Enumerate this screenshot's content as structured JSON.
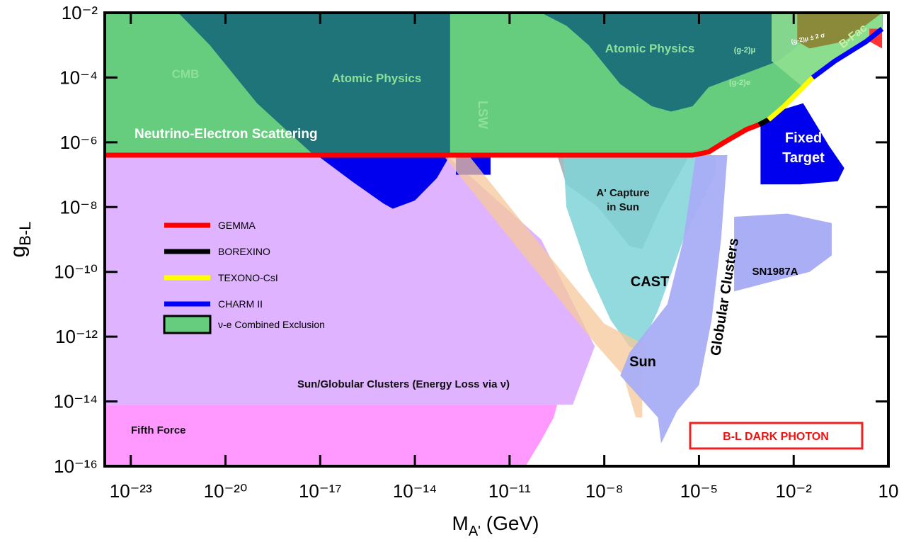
{
  "chart_data": {
    "type": "area",
    "xlabel": {
      "main": "M",
      "sub": "A'",
      "unit": " (GeV)"
    },
    "ylabel": {
      "main": "g",
      "sub": "B-L"
    },
    "log_x": true,
    "log_y": true,
    "xlim": [
      1.5e-24,
      10
    ],
    "ylim": [
      1e-16,
      0.01
    ],
    "xticks": [
      {
        "value": 1e-23,
        "label": "10⁻²³"
      },
      {
        "value": 1e-20,
        "label": "10⁻²⁰"
      },
      {
        "value": 1e-17,
        "label": "10⁻¹⁷"
      },
      {
        "value": 1e-14,
        "label": "10⁻¹⁴"
      },
      {
        "value": 1e-11,
        "label": "10⁻¹¹"
      },
      {
        "value": 1e-08,
        "label": "10⁻⁸"
      },
      {
        "value": 1e-05,
        "label": "10⁻⁵"
      },
      {
        "value": 0.01,
        "label": "10⁻²"
      },
      10
    ],
    "yticks": [
      {
        "value": 1e-16,
        "label": "10⁻¹⁶"
      },
      {
        "value": 1e-14,
        "label": "10⁻¹⁴"
      },
      {
        "value": 1e-12,
        "label": "10⁻¹²"
      },
      {
        "value": 1e-10,
        "label": "10⁻¹⁰"
      },
      {
        "value": 1e-08,
        "label": "10⁻⁸"
      },
      {
        "value": 1e-06,
        "label": "10⁻⁶"
      },
      {
        "value": 0.0001,
        "label": "10⁻⁴"
      },
      {
        "value": 0.01,
        "label": "10⁻²"
      }
    ],
    "regions": [
      {
        "name": "ν-e Combined Exclusion",
        "color": "#66cc7e",
        "opacity": 1,
        "x": [
          1.5e-24,
          6.3e-06,
          2e-05,
          6.3e-05,
          0.00032,
          0.00079,
          0.0016,
          0.005,
          0.02,
          0.04,
          0.2,
          2,
          6.3,
          6.3,
          1.5e-24
        ],
        "values": [
          4e-07,
          4e-07,
          5e-07,
          1e-06,
          2.5e-06,
          3.5e-06,
          5e-06,
          1.3e-05,
          5e-05,
          0.0001,
          0.00032,
          0.0013,
          0.0032,
          0.01,
          0.01
        ]
      },
      {
        "color": "#dfb3ff",
        "opacity": 1,
        "x": [
          1.5e-24,
          1e-13,
          1e-10,
          5e-09,
          1e-09,
          1.5e-24
        ],
        "values": [
          4e-07,
          4e-07,
          1e-09,
          5e-13,
          7.9e-15,
          7.9e-15
        ]
      },
      {
        "color": "#ff99ff",
        "opacity": 1,
        "x": [
          1.5e-24,
          1.5e-24,
          3.2e-10,
          2.5e-10,
          1e-10,
          3.2e-11
        ],
        "values": [
          1e-16,
          7.9e-15,
          7.9e-15,
          3.2e-15,
          6.3e-16,
          1e-16
        ]
      },
      {
        "color": "#1e7479",
        "opacity": 1,
        "x": [
          3.2e-22,
          1.3e-13,
          1.3e-13,
          6.3e-18,
          1e-19,
          3.2e-21
        ],
        "values": [
          0.01,
          0.01,
          4e-07,
          4e-07,
          1.6e-05,
          0.001
        ]
      },
      {
        "color": "#1e7479",
        "opacity": 1,
        "x": [
          1e-10,
          0.05,
          0.05,
          0.0032,
          2e-05,
          6.3e-06,
          1.3e-06,
          3.2e-07,
          3.2e-08,
          3.2e-09,
          6.3e-10
        ],
        "values": [
          0.01,
          0.01,
          0.0025,
          0.00032,
          5e-05,
          1.3e-05,
          8.9e-06,
          1.3e-05,
          6.3e-05,
          0.001,
          0.004
        ]
      },
      {
        "color": "#8fe08f",
        "opacity": 0.9,
        "x": [
          0.002,
          6.3,
          6.3,
          0.2,
          0.02,
          0.002
        ],
        "values": [
          0.01,
          0.01,
          0.0032,
          0.00032,
          5e-05,
          0.00032
        ]
      },
      {
        "color": "#8a8a3a",
        "opacity": 1,
        "x": [
          0.013,
          6.3,
          0.4,
          0.032,
          0.013
        ],
        "values": [
          0.01,
          0.01,
          0.0013,
          0.00079,
          0.0013
        ]
      },
      {
        "color": "#ff3333",
        "opacity": 1,
        "x": [
          2.5,
          6.3,
          6.3,
          2.5
        ],
        "values": [
          0.0032,
          0.0032,
          0.00079,
          0.0013
        ]
      },
      {
        "color": "#0000ee",
        "opacity": 1,
        "x": [
          7.9e-18,
          1e-16,
          1e-15,
          2e-15,
          1e-14,
          5e-14,
          1.3e-13
        ],
        "values": [
          4e-07,
          6.3e-08,
          1.3e-08,
          8.9e-09,
          1.6e-08,
          7.9e-08,
          4e-07
        ]
      },
      {
        "color": "#0000ee",
        "opacity": 1,
        "x": [
          2e-13,
          2.5e-12,
          2.5e-12,
          2e-13
        ],
        "values": [
          4e-07,
          4e-07,
          1e-07,
          1e-07
        ]
      },
      {
        "color": "#0000ee",
        "opacity": 1,
        "x": [
          0.00089,
          0.004,
          0.02,
          0.13,
          0.4,
          0.25,
          0.016,
          0.00089
        ],
        "values": [
          3.5e-06,
          1e-05,
          1.6e-05,
          7.9e-07,
          1.6e-07,
          6.3e-08,
          5e-08,
          5e-08
        ]
      },
      {
        "color": "#8fa0a8",
        "opacity": 0.75,
        "x": [
          3.2e-10,
          5e-06,
          6.3e-07,
          1.6e-07,
          6.3e-08,
          6.3e-09,
          6.3e-10
        ],
        "values": [
          4e-07,
          4e-07,
          1e-08,
          5e-10,
          6.3e-10,
          1e-08,
          5e-08
        ]
      },
      {
        "color": "#7fd3d8",
        "opacity": 0.85,
        "x": [
          5e-10,
          3.2e-05,
          3.2e-05,
          3.2e-06,
          5e-07,
          2e-07,
          1e-07,
          6.3e-08,
          1.6e-08,
          3.2e-09,
          6.3e-10
        ],
        "values": [
          4e-07,
          4e-07,
          1e-07,
          1e-09,
          6.3e-12,
          1e-12,
          4e-13,
          5e-13,
          3.2e-12,
          1e-10,
          1e-08
        ]
      },
      {
        "color": "#f5c89a",
        "opacity": 0.75,
        "x": [
          7.9e-14,
          5e-13,
          3.2e-11,
          1e-08,
          2.5e-07,
          1.6e-07,
          1.6e-07,
          1e-07,
          4e-08,
          5e-09,
          1.6e-11
        ],
        "values": [
          4e-07,
          4e-07,
          2.5e-09,
          2.5e-12,
          5e-13,
          6.3e-14,
          3.2e-15,
          3.2e-15,
          6.3e-14,
          6.3e-13,
          6.3e-10
        ]
      },
      {
        "color": "#a9aef5",
        "opacity": 0.95,
        "x": [
          7.9e-06,
          7.9e-05,
          5e-05,
          2.5e-05,
          1e-05,
          2e-06,
          6.3e-07,
          5e-07,
          3.2e-08,
          6.3e-08,
          1e-06,
          3.2e-06
        ],
        "values": [
          4e-07,
          4e-07,
          1e-09,
          3.2e-12,
          3.2e-14,
          5e-15,
          5e-16,
          3.2e-15,
          6.3e-14,
          3.2e-13,
          1e-11,
          1e-09
        ]
      },
      {
        "color": "#a9aef5",
        "opacity": 1,
        "x": [
          0.00013,
          0.0063,
          0.16,
          0.16,
          0.032,
          0.005,
          0.00013
        ],
        "values": [
          5e-09,
          6.3e-09,
          3.2e-09,
          3.2e-10,
          1e-10,
          6.3e-11,
          2.5e-11
        ]
      }
    ],
    "series": [
      {
        "name": "GEMMA",
        "color": "#ff0000",
        "x": [
          1.5e-24,
          6.3e-06,
          2e-05,
          6.3e-05,
          0.00032,
          0.00079
        ],
        "values": [
          4e-07,
          4e-07,
          5e-07,
          1e-06,
          2.5e-06,
          3.5e-06
        ]
      },
      {
        "name": "BOREXINO",
        "color": "#000000",
        "x": [
          0.00079,
          0.0016
        ],
        "values": [
          3.5e-06,
          5e-06
        ]
      },
      {
        "name": "TEXONO-CsI",
        "color": "#ffff00",
        "x": [
          0.0016,
          0.005,
          0.02,
          0.04
        ],
        "values": [
          5e-06,
          1.3e-05,
          5e-05,
          0.0001
        ]
      },
      {
        "name": "CHARM II",
        "color": "#0000ff",
        "x": [
          0.04,
          0.2,
          2,
          6.3
        ],
        "values": [
          0.0001,
          0.00032,
          0.0013,
          0.0032
        ]
      }
    ],
    "annotations": [
      "CMB",
      "Atomic Physics",
      "Atomic Physics",
      "LSW",
      "Neutrino-Electron Scattering",
      "A' Capture",
      "in Sun",
      "CAST",
      "Sun",
      "Globular Clusters",
      "SN1987A",
      "Fixed",
      "Target",
      "(g-2)μ",
      "(g-2)e",
      "(g-2)μ ± 2 σ",
      "B-Fac",
      "Sun/Globular Clusters (Energy Loss via ν)",
      "Fifth Force",
      "B-L DARK PHOTON"
    ]
  }
}
